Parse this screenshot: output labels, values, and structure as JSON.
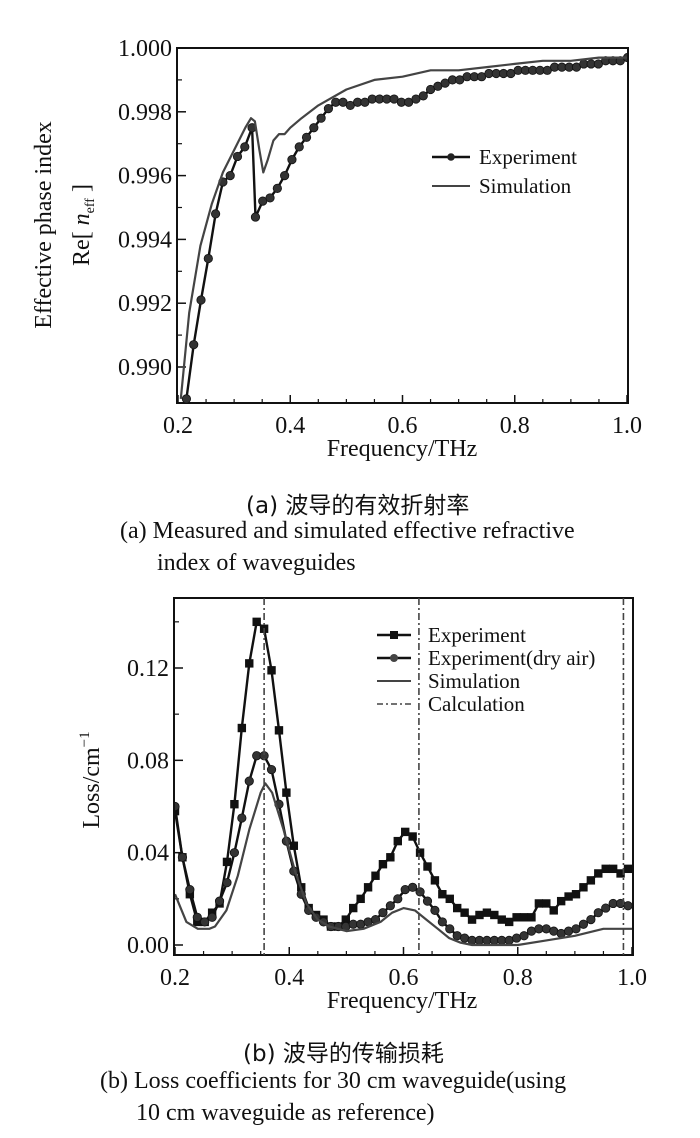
{
  "captions": {
    "a_cn": "(a) 波导的有效折射率",
    "a_en_line1": "(a) Measured and simulated effective refractive",
    "a_en_line2": "index of waveguides",
    "b_cn": "(b) 波导的传输损耗",
    "b_en_line1": "(b) Loss coefficients for 30 cm waveguide(using",
    "b_en_line2": "10 cm waveguide as reference)"
  },
  "chart_data": [
    {
      "type": "line",
      "title": "",
      "xlabel": "Frequency/THz",
      "ylabel_line1": "Effective phase index",
      "ylabel_line2": "Re[ n_eff ]",
      "xlim": [
        0.2,
        1.0
      ],
      "ylim": [
        0.989,
        1.0
      ],
      "xticks": [
        0.2,
        0.4,
        0.6,
        0.8,
        1.0
      ],
      "xtick_labels": [
        "0.2",
        "0.4",
        "0.6",
        "0.8",
        "1.0"
      ],
      "yticks": [
        0.99,
        0.992,
        0.994,
        0.996,
        0.998,
        1.0
      ],
      "ytick_labels": [
        "0.990",
        "0.992",
        "0.994",
        "0.996",
        "0.998",
        "1.000"
      ],
      "grid": false,
      "legend_position": "center-right",
      "series": [
        {
          "name": "Experiment",
          "marker": "circle",
          "x": [
            0.215,
            0.228,
            0.241,
            0.254,
            0.267,
            0.28,
            0.293,
            0.306,
            0.319,
            0.332,
            0.338,
            0.351,
            0.364,
            0.377,
            0.39,
            0.403,
            0.416,
            0.429,
            0.442,
            0.455,
            0.468,
            0.481,
            0.494,
            0.507,
            0.52,
            0.533,
            0.546,
            0.559,
            0.572,
            0.585,
            0.598,
            0.611,
            0.624,
            0.637,
            0.65,
            0.663,
            0.676,
            0.689,
            0.702,
            0.715,
            0.728,
            0.741,
            0.754,
            0.767,
            0.78,
            0.793,
            0.806,
            0.819,
            0.832,
            0.845,
            0.858,
            0.871,
            0.884,
            0.897,
            0.91,
            0.923,
            0.936,
            0.949,
            0.962,
            0.975,
            0.988,
            1.001
          ],
          "y": [
            0.989,
            0.9907,
            0.9921,
            0.9934,
            0.9948,
            0.9958,
            0.996,
            0.9966,
            0.9969,
            0.9975,
            0.9947,
            0.9952,
            0.9953,
            0.9956,
            0.996,
            0.9965,
            0.9969,
            0.9972,
            0.9975,
            0.9978,
            0.9981,
            0.9983,
            0.9983,
            0.9982,
            0.9983,
            0.9983,
            0.9984,
            0.9984,
            0.9984,
            0.9984,
            0.9983,
            0.9983,
            0.9984,
            0.9985,
            0.9987,
            0.9988,
            0.9989,
            0.999,
            0.999,
            0.9991,
            0.9991,
            0.9991,
            0.9992,
            0.9992,
            0.9992,
            0.9992,
            0.9993,
            0.9993,
            0.9993,
            0.9993,
            0.9993,
            0.9994,
            0.9994,
            0.9994,
            0.9994,
            0.9995,
            0.9995,
            0.9995,
            0.9996,
            0.9996,
            0.9996,
            0.9997
          ]
        },
        {
          "name": "Simulation",
          "marker": "none",
          "x": [
            0.205,
            0.22,
            0.24,
            0.26,
            0.28,
            0.3,
            0.32,
            0.33,
            0.337,
            0.345,
            0.352,
            0.36,
            0.37,
            0.38,
            0.39,
            0.4,
            0.42,
            0.45,
            0.5,
            0.55,
            0.6,
            0.65,
            0.665,
            0.68,
            0.7,
            0.75,
            0.8,
            0.85,
            0.9,
            0.95,
            1.0
          ],
          "y": [
            0.989,
            0.9917,
            0.9938,
            0.9951,
            0.9961,
            0.9968,
            0.9975,
            0.9978,
            0.9977,
            0.9968,
            0.9961,
            0.9965,
            0.9971,
            0.9973,
            0.9973,
            0.9975,
            0.9978,
            0.9982,
            0.9987,
            0.999,
            0.9991,
            0.9993,
            0.9993,
            0.9993,
            0.9993,
            0.9994,
            0.9995,
            0.9996,
            0.9996,
            0.9997,
            0.9997
          ]
        }
      ]
    },
    {
      "type": "line",
      "title": "",
      "xlabel": "Frequency/THz",
      "ylabel": "Loss/cm⁻¹",
      "xlim": [
        0.2,
        1.0
      ],
      "ylim": [
        -0.004,
        0.146
      ],
      "xticks": [
        0.2,
        0.4,
        0.6,
        0.8,
        1.0
      ],
      "xtick_labels": [
        "0.2",
        "0.4",
        "0.6",
        "0.8",
        "1.0"
      ],
      "yticks": [
        0.0,
        0.04,
        0.08,
        0.12
      ],
      "ytick_labels": [
        "0.00",
        "0.04",
        "0.08",
        "0.12"
      ],
      "grid": false,
      "legend_position": "top-right",
      "series": [
        {
          "name": "Experiment",
          "marker": "square",
          "x": [
            0.2,
            0.213,
            0.226,
            0.239,
            0.252,
            0.265,
            0.278,
            0.291,
            0.304,
            0.317,
            0.33,
            0.343,
            0.356,
            0.369,
            0.382,
            0.395,
            0.408,
            0.421,
            0.434,
            0.447,
            0.46,
            0.473,
            0.486,
            0.499,
            0.512,
            0.525,
            0.538,
            0.551,
            0.564,
            0.577,
            0.59,
            0.603,
            0.616,
            0.629,
            0.642,
            0.655,
            0.668,
            0.681,
            0.694,
            0.707,
            0.72,
            0.733,
            0.746,
            0.759,
            0.772,
            0.785,
            0.798,
            0.811,
            0.824,
            0.837,
            0.85,
            0.863,
            0.876,
            0.889,
            0.902,
            0.915,
            0.928,
            0.941,
            0.954,
            0.967,
            0.98,
            0.993
          ],
          "y": [
            0.058,
            0.038,
            0.022,
            0.01,
            0.01,
            0.014,
            0.018,
            0.036,
            0.061,
            0.094,
            0.122,
            0.14,
            0.137,
            0.119,
            0.093,
            0.066,
            0.043,
            0.025,
            0.016,
            0.013,
            0.011,
            0.008,
            0.008,
            0.011,
            0.016,
            0.02,
            0.025,
            0.03,
            0.035,
            0.038,
            0.045,
            0.049,
            0.047,
            0.04,
            0.034,
            0.028,
            0.022,
            0.02,
            0.016,
            0.014,
            0.011,
            0.013,
            0.014,
            0.013,
            0.011,
            0.01,
            0.012,
            0.012,
            0.012,
            0.018,
            0.018,
            0.015,
            0.019,
            0.021,
            0.022,
            0.025,
            0.028,
            0.031,
            0.033,
            0.033,
            0.031,
            0.033
          ]
        },
        {
          "name": "Experiment(dry air)",
          "marker": "circle",
          "x": [
            0.2,
            0.213,
            0.226,
            0.239,
            0.252,
            0.265,
            0.278,
            0.291,
            0.304,
            0.317,
            0.33,
            0.343,
            0.356,
            0.369,
            0.382,
            0.395,
            0.408,
            0.421,
            0.434,
            0.447,
            0.46,
            0.473,
            0.486,
            0.499,
            0.512,
            0.525,
            0.538,
            0.551,
            0.564,
            0.577,
            0.59,
            0.603,
            0.616,
            0.629,
            0.642,
            0.655,
            0.668,
            0.681,
            0.694,
            0.707,
            0.72,
            0.733,
            0.746,
            0.759,
            0.772,
            0.785,
            0.798,
            0.811,
            0.824,
            0.837,
            0.85,
            0.863,
            0.876,
            0.889,
            0.902,
            0.915,
            0.928,
            0.941,
            0.954,
            0.967,
            0.98,
            0.993
          ],
          "y": [
            0.06,
            0.038,
            0.024,
            0.012,
            0.01,
            0.012,
            0.019,
            0.027,
            0.04,
            0.055,
            0.071,
            0.082,
            0.082,
            0.076,
            0.061,
            0.045,
            0.032,
            0.022,
            0.015,
            0.012,
            0.01,
            0.008,
            0.008,
            0.008,
            0.009,
            0.009,
            0.01,
            0.011,
            0.014,
            0.017,
            0.02,
            0.024,
            0.025,
            0.023,
            0.019,
            0.015,
            0.01,
            0.007,
            0.004,
            0.003,
            0.002,
            0.002,
            0.002,
            0.002,
            0.002,
            0.002,
            0.003,
            0.004,
            0.006,
            0.007,
            0.007,
            0.006,
            0.005,
            0.006,
            0.007,
            0.009,
            0.011,
            0.014,
            0.016,
            0.018,
            0.018,
            0.017
          ]
        },
        {
          "name": "Simulation",
          "marker": "none",
          "x": [
            0.2,
            0.22,
            0.24,
            0.26,
            0.27,
            0.29,
            0.31,
            0.33,
            0.35,
            0.358,
            0.37,
            0.39,
            0.41,
            0.43,
            0.45,
            0.47,
            0.5,
            0.53,
            0.56,
            0.58,
            0.6,
            0.62,
            0.64,
            0.66,
            0.68,
            0.7,
            0.72,
            0.75,
            0.8,
            0.85,
            0.9,
            0.95,
            1.0
          ],
          "y": [
            0.022,
            0.01,
            0.007,
            0.007,
            0.008,
            0.015,
            0.03,
            0.05,
            0.066,
            0.07,
            0.066,
            0.05,
            0.032,
            0.018,
            0.011,
            0.008,
            0.006,
            0.007,
            0.01,
            0.014,
            0.016,
            0.015,
            0.011,
            0.007,
            0.003,
            0.001,
            0.0,
            0.0,
            0.0,
            0.002,
            0.004,
            0.007,
            0.007
          ]
        },
        {
          "name": "Calculation",
          "marker": "none",
          "style": "dash-dot vertical",
          "x_positions": [
            0.356,
            0.627,
            0.985
          ]
        }
      ]
    }
  ]
}
